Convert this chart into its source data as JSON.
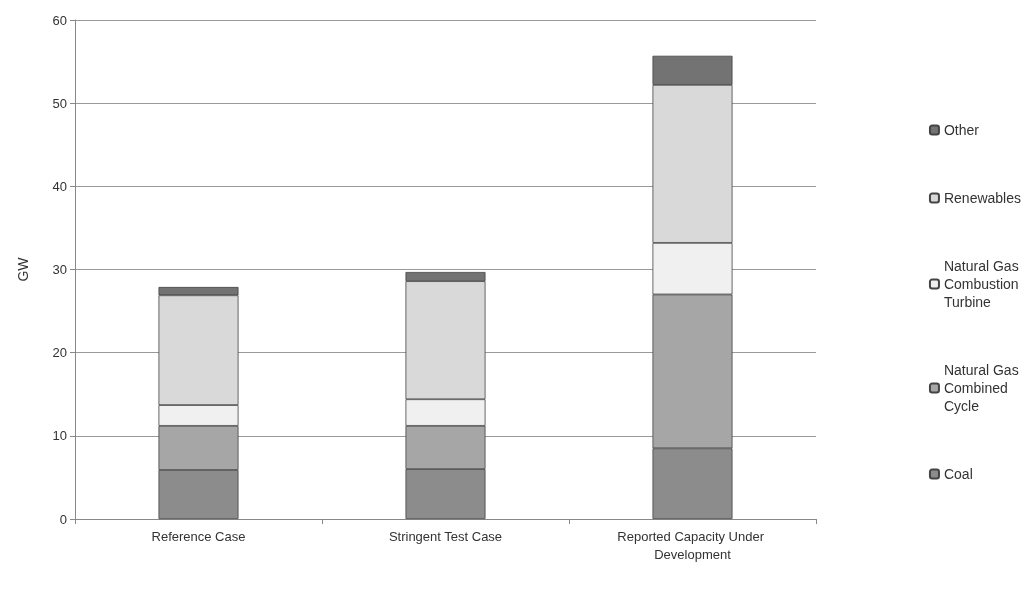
{
  "chart_data": {
    "type": "bar",
    "stacked": true,
    "ylabel": "GW",
    "categories": [
      "Reference Case",
      "Stringent Test Case",
      "Reported Capacity Under Development"
    ],
    "series": [
      {
        "name": "Coal",
        "color": "#8c8c8c",
        "values": [
          5.9,
          6.0,
          8.5
        ]
      },
      {
        "name": "Natural Gas Combined Cycle",
        "color": "#a6a6a6",
        "values": [
          5.3,
          5.2,
          18.5
        ]
      },
      {
        "name": "Natural Gas Combustion Turbine",
        "color": "#f0f0f0",
        "values": [
          2.5,
          3.2,
          6.2
        ]
      },
      {
        "name": "Renewables",
        "color": "#d9d9d9",
        "values": [
          13.2,
          14.2,
          19.0
        ]
      },
      {
        "name": "Other",
        "color": "#737373",
        "values": [
          1.0,
          1.1,
          3.5
        ]
      }
    ],
    "ylim": [
      0,
      60
    ],
    "yticks": [
      0,
      10,
      20,
      30,
      40,
      50,
      60
    ],
    "grid": "y",
    "legend": "right"
  }
}
